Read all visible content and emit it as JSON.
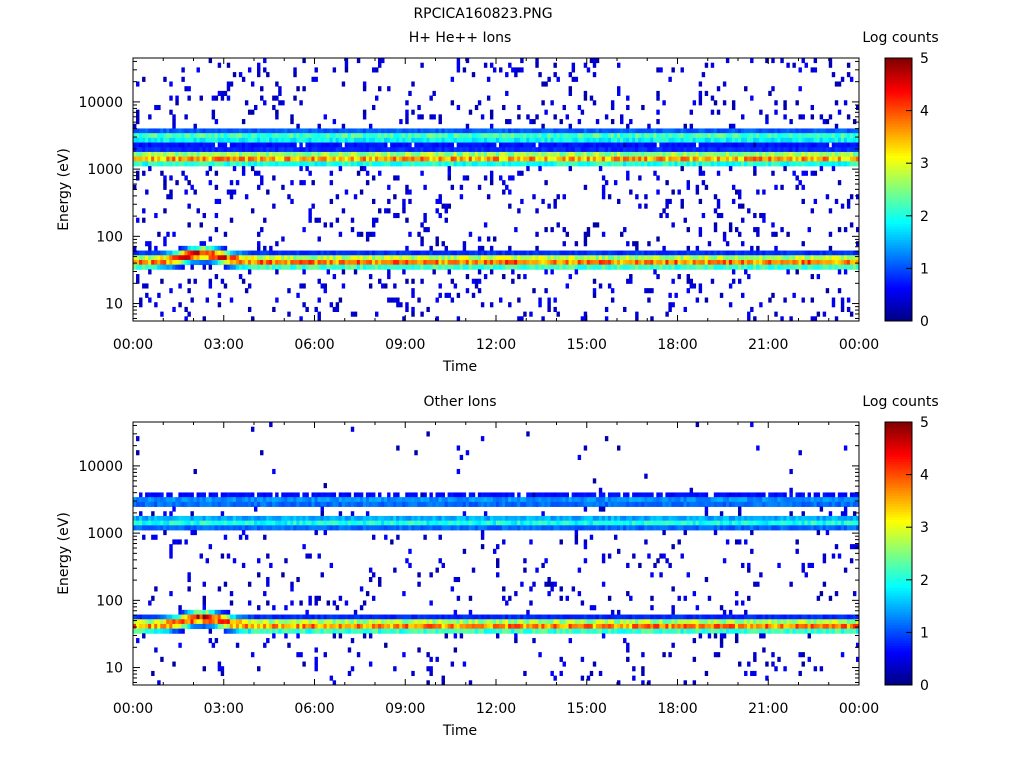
{
  "figure_title": "RPCICA160823.PNG",
  "chart_data": [
    {
      "type": "heatmap",
      "title": "H+ He++ Ions",
      "xlabel": "Time",
      "ylabel": "Energy (eV)",
      "colorbar_label": "Log counts",
      "x_ticks": [
        "00:00",
        "03:00",
        "06:00",
        "09:00",
        "12:00",
        "15:00",
        "18:00",
        "21:00",
        "00:00"
      ],
      "xlim_hours": [
        0,
        24
      ],
      "y_scale": "log",
      "ylim": [
        5.5,
        45000
      ],
      "y_ticks": [
        {
          "value": 10,
          "label": "10"
        },
        {
          "value": 100,
          "label": "100"
        },
        {
          "value": 1000,
          "label": "1000"
        },
        {
          "value": 10000,
          "label": "10000"
        }
      ],
      "zlim": [
        0,
        5
      ],
      "z_ticks": [
        "0",
        "1",
        "2",
        "3",
        "4",
        "5"
      ],
      "bands": [
        {
          "description": "high-energy band",
          "energy_eV": 3000,
          "start_hour": 0.0,
          "end_hour": 24.0,
          "peak_log_counts": 2.3
        },
        {
          "description": "main band",
          "energy_eV": 1450,
          "start_hour": 0.0,
          "end_hour": 24.0,
          "peak_log_counts": 3.6
        },
        {
          "description": "low-energy band",
          "energy_eV": 42,
          "start_hour": 0.0,
          "end_hour": 24.0,
          "peak_log_counts": 3.8,
          "enhancement": {
            "hour": 2.3,
            "energy_eV": 55,
            "peak_log_counts": 4.6
          }
        }
      ],
      "background": "sparse 1-count noise across all energies"
    },
    {
      "type": "heatmap",
      "title": "Other Ions",
      "xlabel": "Time",
      "ylabel": "Energy (eV)",
      "colorbar_label": "Log counts",
      "x_ticks": [
        "00:00",
        "03:00",
        "06:00",
        "09:00",
        "12:00",
        "15:00",
        "18:00",
        "21:00",
        "00:00"
      ],
      "xlim_hours": [
        0,
        24
      ],
      "y_scale": "log",
      "ylim": [
        5.5,
        45000
      ],
      "y_ticks": [
        {
          "value": 10,
          "label": "10"
        },
        {
          "value": 100,
          "label": "100"
        },
        {
          "value": 1000,
          "label": "1000"
        },
        {
          "value": 10000,
          "label": "10000"
        }
      ],
      "zlim": [
        0,
        5
      ],
      "z_ticks": [
        "0",
        "1",
        "2",
        "3",
        "4",
        "5"
      ],
      "bands": [
        {
          "description": "high-energy band",
          "energy_eV": 3000,
          "start_hour": 0.0,
          "end_hour": 24.0,
          "peak_log_counts": 1.4
        },
        {
          "description": "main band",
          "energy_eV": 1450,
          "start_hour": 0.0,
          "end_hour": 24.0,
          "peak_log_counts": 2.0
        },
        {
          "description": "low-energy band",
          "energy_eV": 42,
          "start_hour": 0.0,
          "end_hour": 24.0,
          "peak_log_counts": 3.7,
          "enhancement": {
            "hour": 2.3,
            "energy_eV": 55,
            "peak_log_counts": 4.6
          }
        }
      ],
      "background": "sparse 1-count noise, fewer at high energy"
    }
  ]
}
